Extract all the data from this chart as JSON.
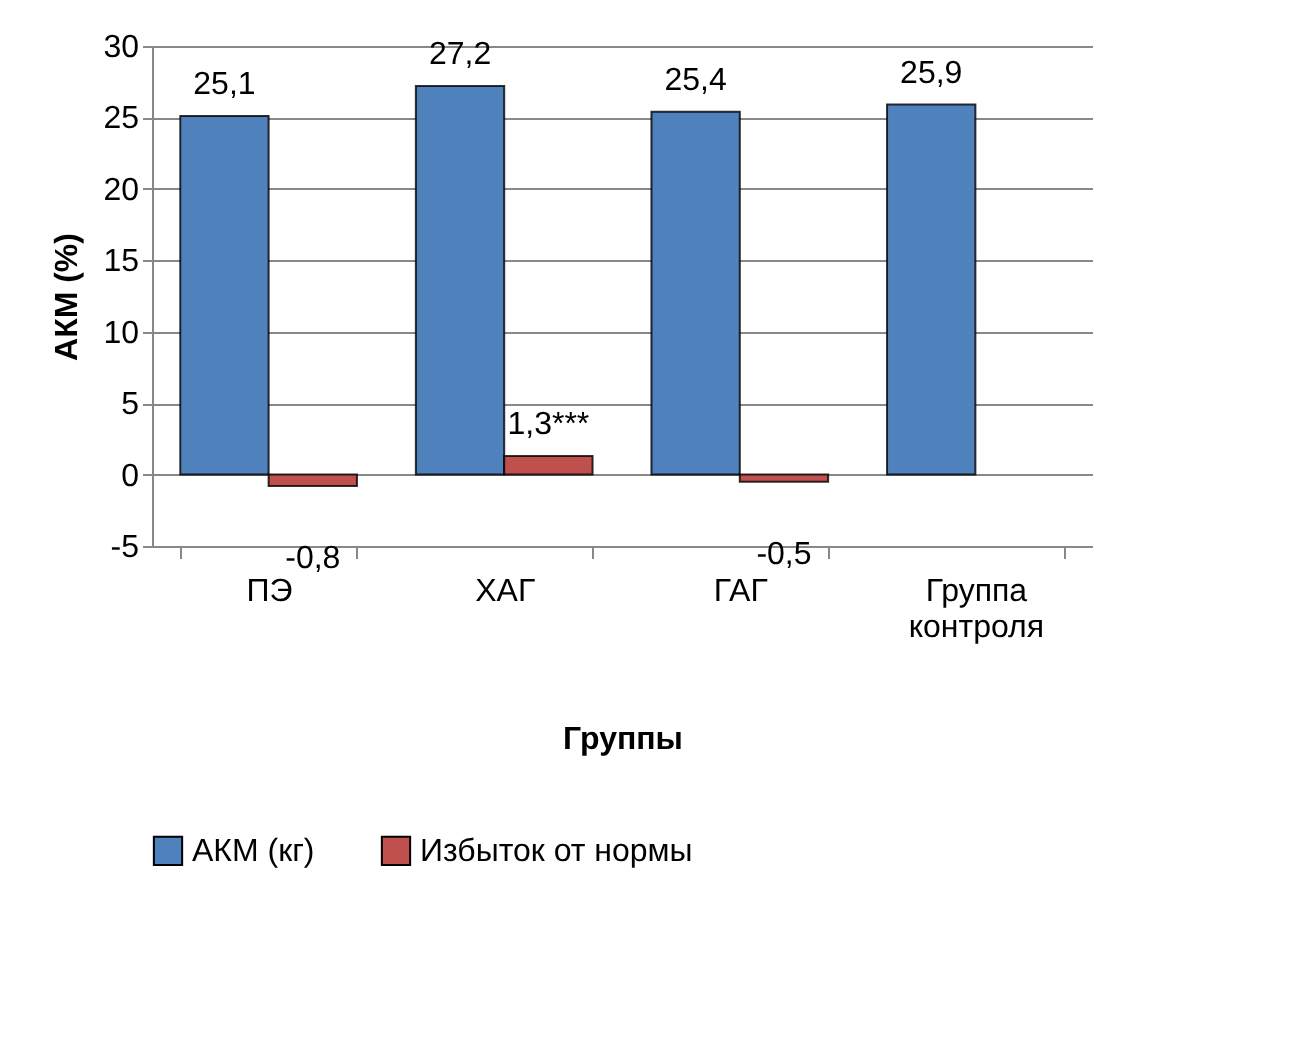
{
  "chart_data": {
    "type": "bar",
    "xlabel": "Группы",
    "ylabel": "АКМ (%)",
    "categories": [
      "ПЭ",
      "ХАГ",
      "ГАГ",
      "Группа контроля"
    ],
    "series": [
      {
        "name": "АКМ (кг)",
        "color": "#4f81bd",
        "values": [
          25.1,
          27.2,
          25.4,
          25.9
        ],
        "value_labels": [
          "25,1",
          "27,2",
          "25,4",
          "25,9"
        ]
      },
      {
        "name": "Избыток от нормы",
        "color": "#c0504d",
        "values": [
          -0.8,
          1.3,
          -0.5,
          null
        ],
        "value_labels": [
          "-0,8",
          "1,3***",
          "-0,5",
          null
        ]
      }
    ],
    "ylim": [
      -5,
      30
    ],
    "yticks": [
      -5,
      0,
      5,
      10,
      15,
      20,
      25,
      30
    ],
    "grid": "y",
    "legend": "bottom"
  }
}
